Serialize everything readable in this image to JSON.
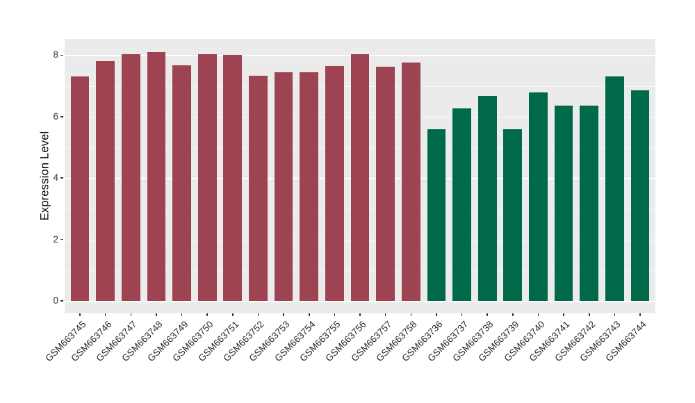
{
  "figure": {
    "title": "",
    "panel_background": "#EBEBEB",
    "grid_major_color": "#FFFFFF",
    "grid_minor_color": "#FFFFFF",
    "axis_text_color": "#333333",
    "axis_title_color": "#000000"
  },
  "chart_data": {
    "type": "bar",
    "title": "",
    "xlabel": "",
    "ylabel": "Expression Level",
    "ylim": [
      0,
      8.5
    ],
    "yticks": [
      0,
      2,
      4,
      6,
      8
    ],
    "yticks_minor": [
      1,
      3,
      5,
      7
    ],
    "grid": "major and minor horizontal white gridlines on gray panel (ggplot style)",
    "legend_position": "none",
    "x_tick_rotation_deg": 45,
    "categories": [
      "GSM663745",
      "GSM663746",
      "GSM663747",
      "GSM663748",
      "GSM663749",
      "GSM663750",
      "GSM663751",
      "GSM663752",
      "GSM663753",
      "GSM663754",
      "GSM663755",
      "GSM663756",
      "GSM663757",
      "GSM663758",
      "GSM663736",
      "GSM663737",
      "GSM663738",
      "GSM663739",
      "GSM663740",
      "GSM663741",
      "GSM663742",
      "GSM663743",
      "GSM663744"
    ],
    "values": [
      7.32,
      7.81,
      8.04,
      8.11,
      7.68,
      8.04,
      8.0,
      7.34,
      7.44,
      7.44,
      7.65,
      8.04,
      7.62,
      7.76,
      5.59,
      6.27,
      6.67,
      5.59,
      6.79,
      6.35,
      6.35,
      7.32,
      6.86
    ],
    "bar_groups": [
      "group1",
      "group1",
      "group1",
      "group1",
      "group1",
      "group1",
      "group1",
      "group1",
      "group1",
      "group1",
      "group1",
      "group1",
      "group1",
      "group1",
      "group2",
      "group2",
      "group2",
      "group2",
      "group2",
      "group2",
      "group2",
      "group2",
      "group2"
    ],
    "group_colors": {
      "group1": "#9E4351",
      "group2": "#00694A"
    }
  }
}
